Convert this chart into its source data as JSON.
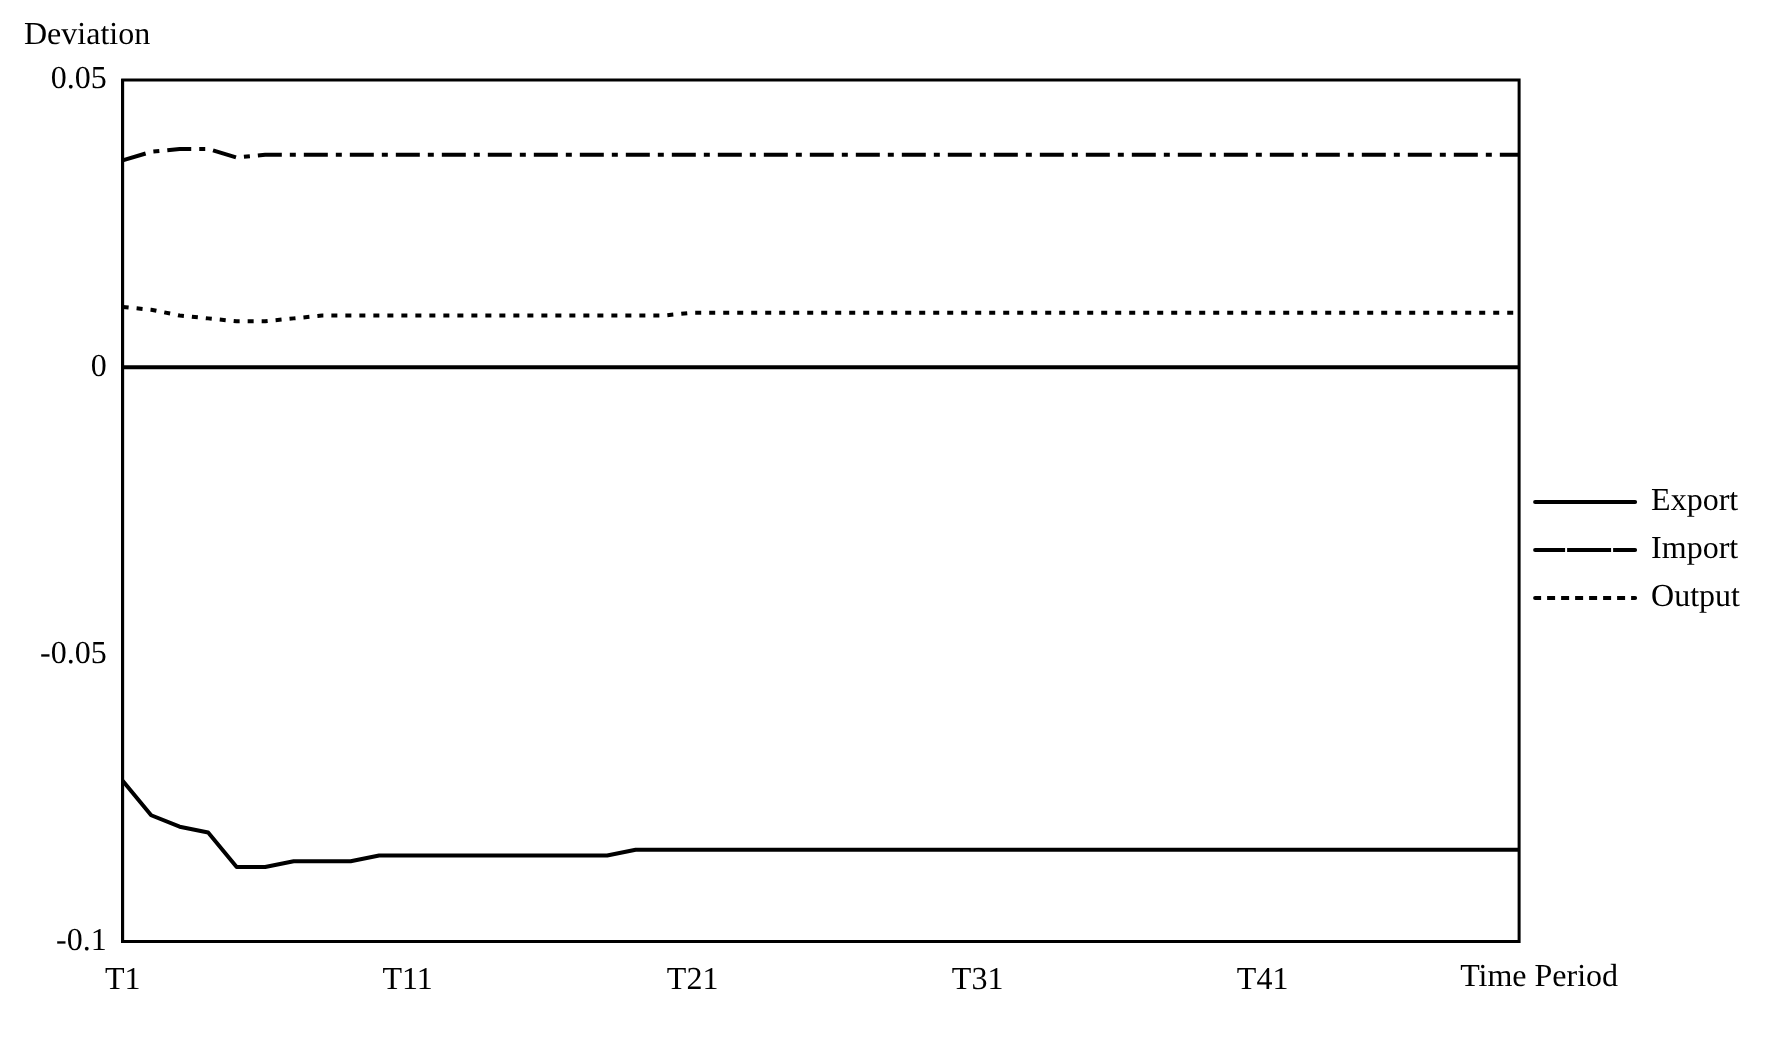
{
  "chart_data": {
    "type": "line",
    "xlabel": "Time Period",
    "ylabel": "Deviation",
    "categories": [
      "T1",
      null,
      null,
      null,
      null,
      null,
      null,
      null,
      null,
      null,
      "T11",
      null,
      null,
      null,
      null,
      null,
      null,
      null,
      null,
      null,
      "T21",
      null,
      null,
      null,
      null,
      null,
      null,
      null,
      null,
      null,
      "T31",
      null,
      null,
      null,
      null,
      null,
      null,
      null,
      null,
      null,
      "T41",
      null,
      null,
      null,
      null,
      null,
      null,
      null,
      null,
      null
    ],
    "series": [
      {
        "name": "Export",
        "color": "#000000",
        "line_style": "solid",
        "values": [
          -0.072,
          -0.078,
          -0.08,
          -0.081,
          -0.087,
          -0.087,
          -0.086,
          -0.086,
          -0.086,
          -0.085,
          -0.085,
          -0.085,
          -0.085,
          -0.085,
          -0.085,
          -0.085,
          -0.085,
          -0.085,
          -0.084,
          -0.084,
          -0.084,
          -0.084,
          -0.084,
          -0.084,
          -0.084,
          -0.084,
          -0.084,
          -0.084,
          -0.084,
          -0.084,
          -0.084,
          -0.084,
          -0.084,
          -0.084,
          -0.084,
          -0.084,
          -0.084,
          -0.084,
          -0.084,
          -0.084,
          -0.084,
          -0.084,
          -0.084,
          -0.084,
          -0.084,
          -0.084,
          -0.084,
          -0.084,
          -0.084,
          -0.084
        ]
      },
      {
        "name": "Import",
        "color": "#000000",
        "line_style": "dashed",
        "values": [
          0.036,
          0.0375,
          0.038,
          0.038,
          0.0365,
          0.037,
          0.037,
          0.037,
          0.037,
          0.037,
          0.037,
          0.037,
          0.037,
          0.037,
          0.037,
          0.037,
          0.037,
          0.037,
          0.037,
          0.037,
          0.037,
          0.037,
          0.037,
          0.037,
          0.037,
          0.037,
          0.037,
          0.037,
          0.037,
          0.037,
          0.037,
          0.037,
          0.037,
          0.037,
          0.037,
          0.037,
          0.037,
          0.037,
          0.037,
          0.037,
          0.037,
          0.037,
          0.037,
          0.037,
          0.037,
          0.037,
          0.037,
          0.037,
          0.037,
          0.037
        ]
      },
      {
        "name": "Output",
        "color": "#000000",
        "line_style": "dotted",
        "values": [
          0.0105,
          0.01,
          0.009,
          0.0085,
          0.008,
          0.008,
          0.0085,
          0.009,
          0.009,
          0.009,
          0.009,
          0.009,
          0.009,
          0.009,
          0.009,
          0.009,
          0.009,
          0.009,
          0.009,
          0.009,
          0.0095,
          0.0095,
          0.0095,
          0.0095,
          0.0095,
          0.0095,
          0.0095,
          0.0095,
          0.0095,
          0.0095,
          0.0095,
          0.0095,
          0.0095,
          0.0095,
          0.0095,
          0.0095,
          0.0095,
          0.0095,
          0.0095,
          0.0095,
          0.0095,
          0.0095,
          0.0095,
          0.0095,
          0.0095,
          0.0095,
          0.0095,
          0.0095,
          0.0095,
          0.0095
        ]
      }
    ],
    "ylim": [
      -0.1,
      0.05
    ],
    "yticks": [
      -0.1,
      -0.05,
      0,
      0.05
    ],
    "grid": false,
    "legend": "right",
    "ref_lines": [
      {
        "axis": "y",
        "value": 0,
        "color": "#000000"
      }
    ]
  }
}
